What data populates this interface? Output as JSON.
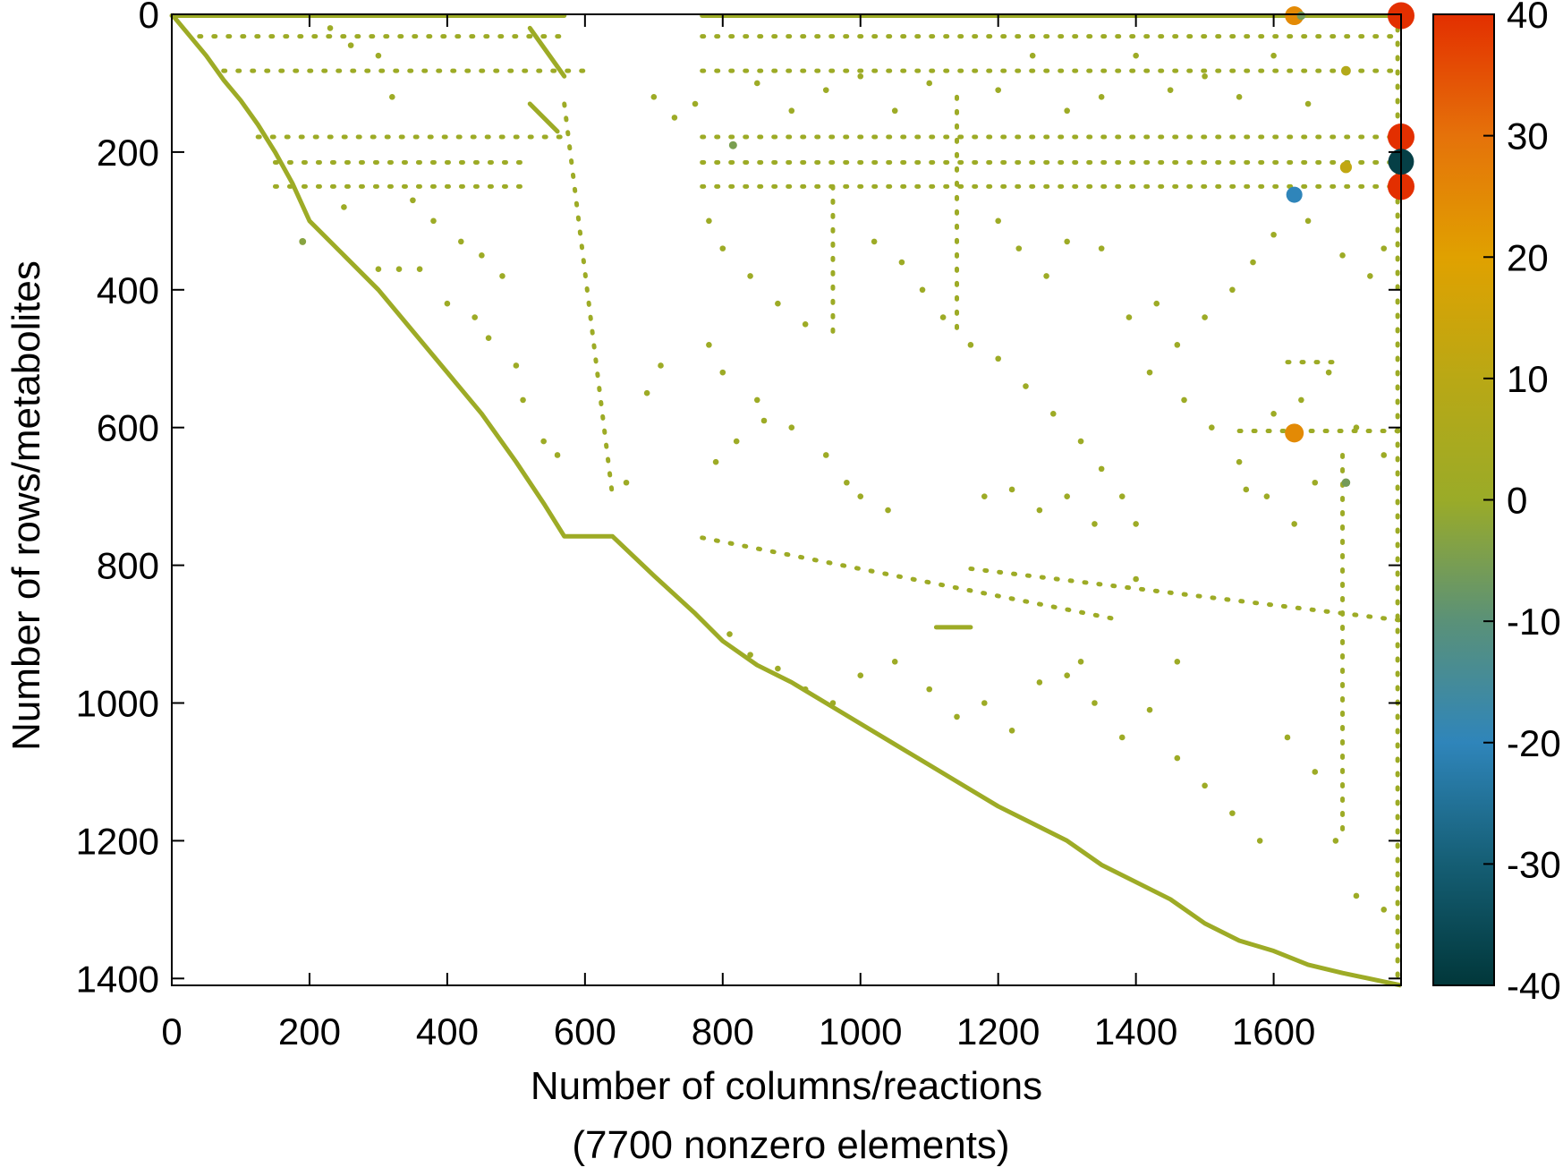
{
  "chart_data": {
    "type": "scatter",
    "subtype": "sparse-matrix spy plot",
    "xlabel": "Number of columns/reactions",
    "xlabel_line2": "(7700 nonzero elements)",
    "ylabel": "Number of rows/metabolites",
    "xlim": [
      0,
      1785
    ],
    "ylim": [
      1410,
      0
    ],
    "y_inverted": true,
    "xticks": [
      0,
      200,
      400,
      600,
      800,
      1000,
      1200,
      1400,
      1600
    ],
    "yticks": [
      0,
      200,
      400,
      600,
      800,
      1000,
      1200,
      1400
    ],
    "grid": false,
    "colorbar": {
      "range": [
        -40,
        40
      ],
      "ticks": [
        40,
        30,
        20,
        10,
        0,
        -10,
        -20,
        -30,
        -40
      ],
      "placement": "right",
      "colormap": [
        [
          -40,
          "#01373a"
        ],
        [
          -30,
          "#155e74"
        ],
        [
          -20,
          "#2f85ba"
        ],
        [
          -10,
          "#5a9178"
        ],
        [
          0,
          "#9aab28"
        ],
        [
          10,
          "#b9a815"
        ],
        [
          20,
          "#e0a100"
        ],
        [
          30,
          "#e5720a"
        ],
        [
          40,
          "#e32f00"
        ]
      ]
    },
    "diagonal_value": 1,
    "diagonal": [
      [
        0,
        0
      ],
      [
        25,
        30
      ],
      [
        50,
        60
      ],
      [
        75,
        95
      ],
      [
        100,
        125
      ],
      [
        125,
        160
      ],
      [
        150,
        200
      ],
      [
        175,
        245
      ],
      [
        200,
        300
      ],
      [
        250,
        350
      ],
      [
        300,
        400
      ],
      [
        350,
        460
      ],
      [
        400,
        520
      ],
      [
        450,
        580
      ],
      [
        500,
        650
      ],
      [
        540,
        710
      ],
      [
        570,
        758
      ],
      [
        640,
        758
      ],
      [
        700,
        815
      ],
      [
        760,
        870
      ],
      [
        800,
        910
      ],
      [
        850,
        945
      ],
      [
        900,
        970
      ],
      [
        950,
        1000
      ],
      [
        1000,
        1030
      ],
      [
        1050,
        1060
      ],
      [
        1100,
        1090
      ],
      [
        1150,
        1120
      ],
      [
        1200,
        1150
      ],
      [
        1250,
        1175
      ],
      [
        1300,
        1200
      ],
      [
        1350,
        1235
      ],
      [
        1400,
        1260
      ],
      [
        1450,
        1285
      ],
      [
        1500,
        1320
      ],
      [
        1550,
        1345
      ],
      [
        1600,
        1360
      ],
      [
        1650,
        1380
      ],
      [
        1700,
        1392
      ],
      [
        1785,
        1410
      ]
    ],
    "segments": [
      {
        "from": [
          0,
          2
        ],
        "to": [
          570,
          2
        ],
        "value": 1
      },
      {
        "from": [
          770,
          2
        ],
        "to": [
          1785,
          2
        ],
        "value": 1
      },
      {
        "from": [
          40,
          32
        ],
        "to": [
          570,
          32
        ],
        "value": 1,
        "dashed": true
      },
      {
        "from": [
          770,
          32
        ],
        "to": [
          1785,
          32
        ],
        "value": 1,
        "dashed": true
      },
      {
        "from": [
          75,
          82
        ],
        "to": [
          600,
          82
        ],
        "value": 1,
        "dashed": true
      },
      {
        "from": [
          770,
          82
        ],
        "to": [
          1785,
          82
        ],
        "value": 1,
        "dashed": true
      },
      {
        "from": [
          125,
          178
        ],
        "to": [
          570,
          178
        ],
        "value": 1,
        "dashed": true
      },
      {
        "from": [
          770,
          178
        ],
        "to": [
          1785,
          178
        ],
        "value": 1,
        "dashed": true
      },
      {
        "from": [
          150,
          215
        ],
        "to": [
          520,
          215
        ],
        "value": 1,
        "dashed": true
      },
      {
        "from": [
          770,
          215
        ],
        "to": [
          1785,
          215
        ],
        "value": 1,
        "dashed": true
      },
      {
        "from": [
          150,
          250
        ],
        "to": [
          520,
          250
        ],
        "value": 1,
        "dashed": true
      },
      {
        "from": [
          770,
          250
        ],
        "to": [
          1785,
          250
        ],
        "value": 1,
        "dashed": true
      },
      {
        "from": [
          570,
          130
        ],
        "to": [
          640,
          700
        ],
        "value": 1,
        "dashed": true
      },
      {
        "from": [
          520,
          20
        ],
        "to": [
          570,
          90
        ],
        "value": 1
      },
      {
        "from": [
          520,
          130
        ],
        "to": [
          560,
          170
        ],
        "value": 1
      },
      {
        "from": [
          770,
          760
        ],
        "to": [
          1380,
          880
        ],
        "value": 1,
        "dashed": true
      },
      {
        "from": [
          1160,
          805
        ],
        "to": [
          1785,
          880
        ],
        "value": 1,
        "dashed": true
      },
      {
        "from": [
          1110,
          890
        ],
        "to": [
          1160,
          890
        ],
        "value": 1
      },
      {
        "from": [
          1620,
          505
        ],
        "to": [
          1700,
          505
        ],
        "value": 1,
        "dashed": true
      },
      {
        "from": [
          1550,
          605
        ],
        "to": [
          1785,
          605
        ],
        "value": 1,
        "dashed": true
      },
      {
        "from": [
          960,
          250
        ],
        "to": [
          960,
          470
        ],
        "value": 1,
        "dashed": true
      },
      {
        "from": [
          1140,
          120
        ],
        "to": [
          1140,
          470
        ],
        "value": 1,
        "dashed": true
      },
      {
        "from": [
          1780,
          0
        ],
        "to": [
          1780,
          1410
        ],
        "value": 1,
        "dashed": true
      },
      {
        "from": [
          1700,
          640
        ],
        "to": [
          1700,
          1200
        ],
        "value": 1,
        "dashed": true
      }
    ],
    "points": [
      [
        1785,
        2,
        40
      ],
      [
        1785,
        178,
        40
      ],
      [
        1785,
        250,
        40
      ],
      [
        1785,
        214,
        -38
      ],
      [
        1630,
        2,
        25
      ],
      [
        1630,
        608,
        25
      ],
      [
        1630,
        262,
        -20
      ],
      [
        1705,
        222,
        12
      ],
      [
        1705,
        82,
        8
      ],
      [
        1705,
        680,
        -6
      ],
      [
        815,
        190,
        -5
      ],
      [
        1640,
        2,
        -6
      ],
      [
        230,
        20,
        1
      ],
      [
        260,
        45,
        1
      ],
      [
        300,
        60,
        1
      ],
      [
        320,
        120,
        1
      ],
      [
        350,
        270,
        1
      ],
      [
        380,
        300,
        1
      ],
      [
        420,
        330,
        1
      ],
      [
        450,
        350,
        1
      ],
      [
        480,
        380,
        1
      ],
      [
        300,
        370,
        1
      ],
      [
        330,
        370,
        1
      ],
      [
        360,
        370,
        1
      ],
      [
        250,
        280,
        1
      ],
      [
        190,
        330,
        -3
      ],
      [
        400,
        420,
        1
      ],
      [
        440,
        440,
        1
      ],
      [
        460,
        470,
        1
      ],
      [
        500,
        510,
        1
      ],
      [
        510,
        560,
        1
      ],
      [
        540,
        620,
        1
      ],
      [
        560,
        640,
        1
      ],
      [
        690,
        550,
        1
      ],
      [
        710,
        510,
        1
      ],
      [
        660,
        680,
        1
      ],
      [
        780,
        300,
        1
      ],
      [
        800,
        340,
        1
      ],
      [
        840,
        380,
        1
      ],
      [
        880,
        420,
        1
      ],
      [
        920,
        450,
        1
      ],
      [
        780,
        480,
        1
      ],
      [
        800,
        520,
        1
      ],
      [
        850,
        560,
        1
      ],
      [
        900,
        600,
        1
      ],
      [
        950,
        640,
        1
      ],
      [
        980,
        680,
        1
      ],
      [
        1000,
        700,
        1
      ],
      [
        1040,
        720,
        1
      ],
      [
        790,
        650,
        1
      ],
      [
        820,
        620,
        1
      ],
      [
        860,
        590,
        1
      ],
      [
        1020,
        330,
        1
      ],
      [
        1060,
        360,
        1
      ],
      [
        1090,
        400,
        1
      ],
      [
        1120,
        440,
        1
      ],
      [
        1160,
        480,
        1
      ],
      [
        1200,
        500,
        1
      ],
      [
        1240,
        540,
        1
      ],
      [
        1280,
        580,
        1
      ],
      [
        1320,
        620,
        1
      ],
      [
        1350,
        660,
        1
      ],
      [
        1380,
        700,
        1
      ],
      [
        1400,
        740,
        1
      ],
      [
        1420,
        520,
        1
      ],
      [
        1460,
        480,
        1
      ],
      [
        1500,
        440,
        1
      ],
      [
        1540,
        400,
        1
      ],
      [
        1570,
        360,
        1
      ],
      [
        1600,
        320,
        1
      ],
      [
        1650,
        300,
        1
      ],
      [
        1700,
        350,
        1
      ],
      [
        1740,
        380,
        1
      ],
      [
        1760,
        340,
        1
      ],
      [
        1200,
        300,
        1
      ],
      [
        1230,
        340,
        1
      ],
      [
        1270,
        380,
        1
      ],
      [
        1300,
        330,
        1
      ],
      [
        1350,
        340,
        1
      ],
      [
        1390,
        440,
        1
      ],
      [
        1430,
        420,
        1
      ],
      [
        1470,
        560,
        1
      ],
      [
        1510,
        600,
        1
      ],
      [
        1550,
        650,
        1
      ],
      [
        1590,
        700,
        1
      ],
      [
        1630,
        740,
        1
      ],
      [
        1660,
        680,
        1
      ],
      [
        810,
        900,
        1
      ],
      [
        840,
        930,
        1
      ],
      [
        880,
        950,
        1
      ],
      [
        920,
        980,
        1
      ],
      [
        960,
        1000,
        1
      ],
      [
        1000,
        960,
        1
      ],
      [
        1050,
        940,
        1
      ],
      [
        1100,
        980,
        1
      ],
      [
        1140,
        1020,
        1
      ],
      [
        1180,
        1000,
        1
      ],
      [
        1220,
        1040,
        1
      ],
      [
        1260,
        970,
        1
      ],
      [
        1300,
        960,
        1
      ],
      [
        1340,
        1000,
        1
      ],
      [
        1380,
        1050,
        1
      ],
      [
        1420,
        1010,
        1
      ],
      [
        1460,
        1080,
        1
      ],
      [
        1500,
        1120,
        1
      ],
      [
        1540,
        1160,
        1
      ],
      [
        1580,
        1200,
        1
      ],
      [
        1620,
        1050,
        1
      ],
      [
        1660,
        1100,
        1
      ],
      [
        1690,
        1200,
        1
      ],
      [
        1720,
        1280,
        1
      ],
      [
        1760,
        1300,
        1
      ],
      [
        1460,
        940,
        1
      ],
      [
        1400,
        820,
        1
      ],
      [
        1320,
        940,
        1
      ],
      [
        1180,
        700,
        1
      ],
      [
        1220,
        690,
        1
      ],
      [
        1260,
        720,
        1
      ],
      [
        1300,
        700,
        1
      ],
      [
        1340,
        740,
        1
      ],
      [
        1560,
        690,
        1
      ],
      [
        1600,
        580,
        1
      ],
      [
        1640,
        560,
        1
      ],
      [
        1680,
        520,
        1
      ],
      [
        1720,
        600,
        1
      ],
      [
        1760,
        640,
        1
      ],
      [
        700,
        120,
        1
      ],
      [
        730,
        150,
        1
      ],
      [
        760,
        130,
        1
      ],
      [
        850,
        100,
        1
      ],
      [
        900,
        140,
        1
      ],
      [
        950,
        110,
        1
      ],
      [
        1000,
        90,
        1
      ],
      [
        1050,
        140,
        1
      ],
      [
        1100,
        100,
        1
      ],
      [
        1200,
        110,
        1
      ],
      [
        1250,
        60,
        1
      ],
      [
        1300,
        140,
        1
      ],
      [
        1350,
        120,
        1
      ],
      [
        1400,
        60,
        1
      ],
      [
        1450,
        110,
        1
      ],
      [
        1500,
        90,
        1
      ],
      [
        1550,
        120,
        1
      ],
      [
        1600,
        60,
        1
      ],
      [
        1650,
        130,
        1
      ]
    ]
  }
}
